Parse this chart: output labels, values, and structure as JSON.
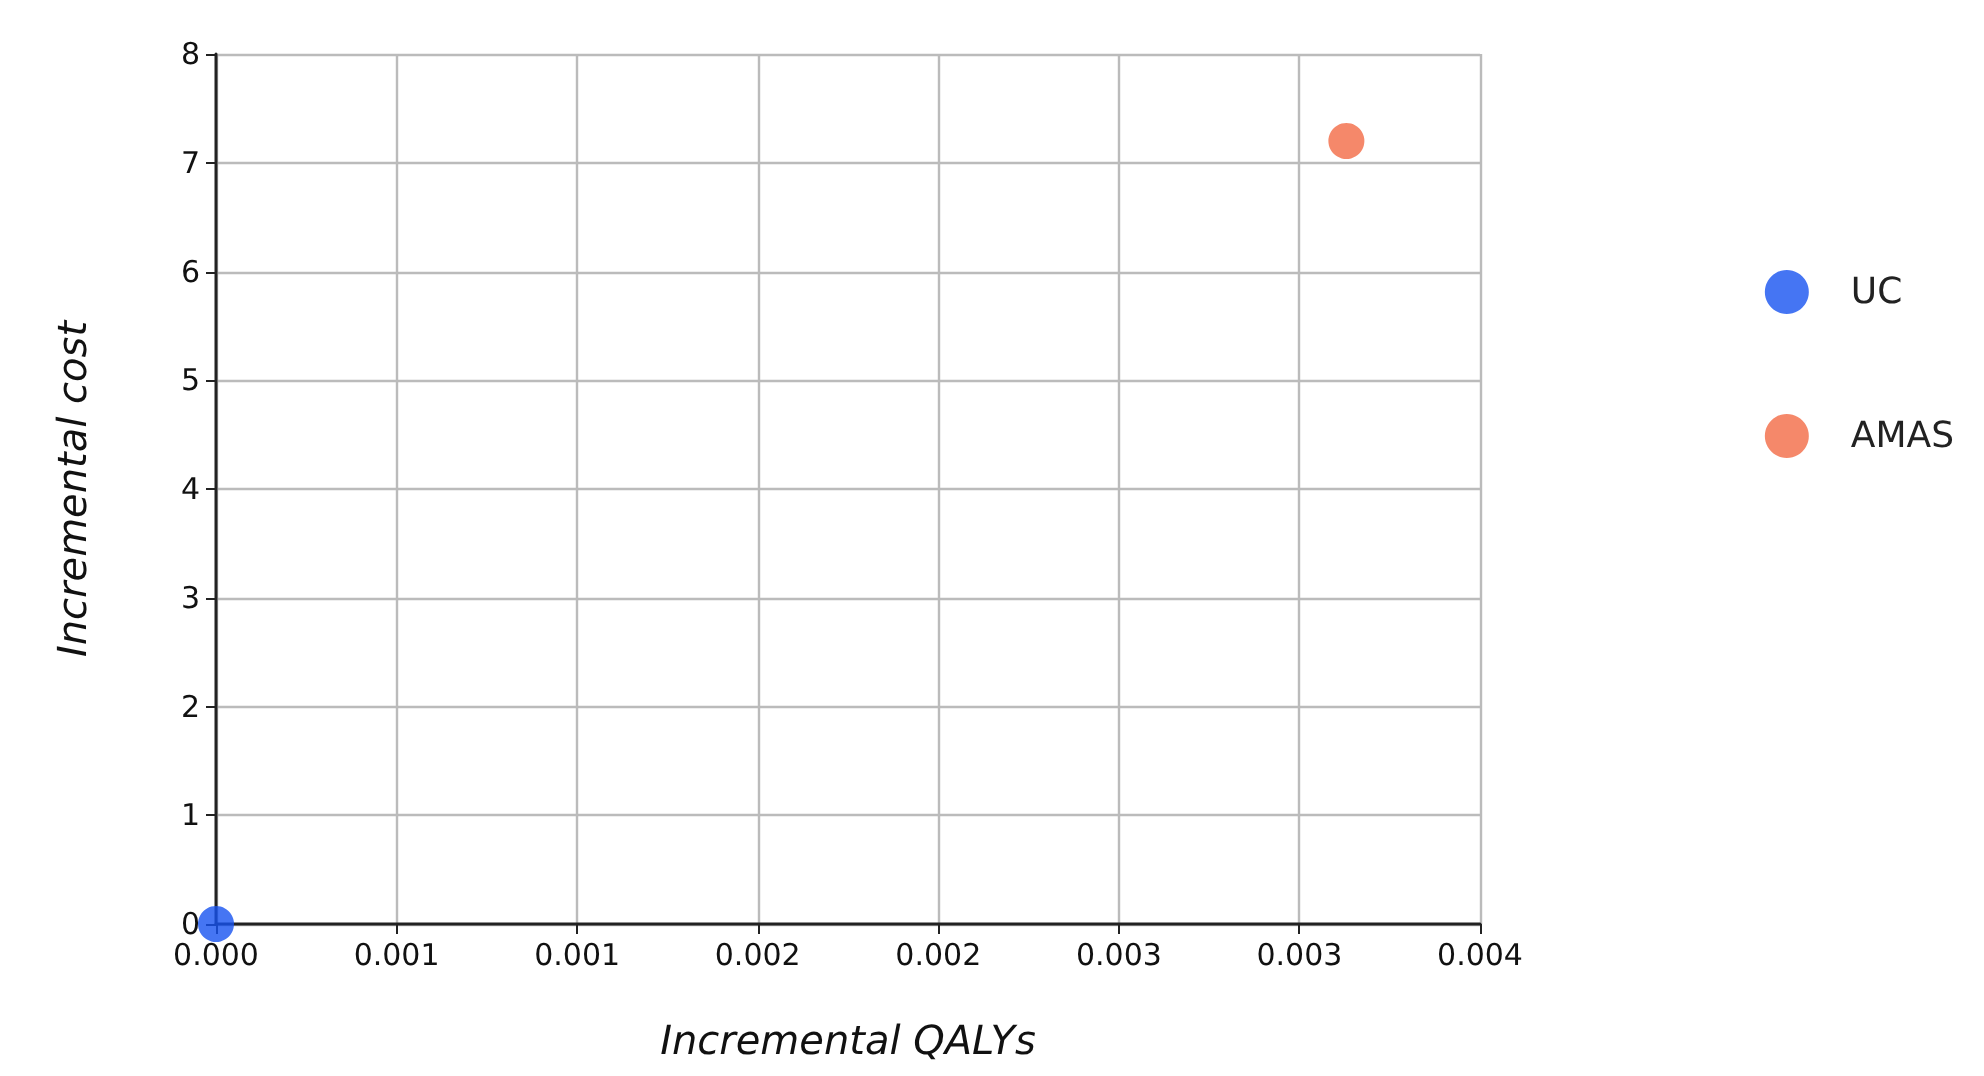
{
  "chart_data": {
    "type": "scatter",
    "xlabel": "Incremental QALYs",
    "ylabel": "Incremental cost",
    "series": [
      {
        "name": "UC",
        "color": "#1652f0",
        "x": [
          0
        ],
        "values": [
          0
        ]
      },
      {
        "name": "AMAS",
        "color": "#f26a45",
        "x": [
          0.00313
        ],
        "values": [
          7.2
        ]
      }
    ],
    "xlim": [
      0,
      0.0035
    ],
    "xticks": [
      {
        "value": 0,
        "label": "0.000"
      },
      {
        "value": 0.0005,
        "label": "0.001"
      },
      {
        "value": 0.001,
        "label": "0.001"
      },
      {
        "value": 0.0015,
        "label": "0.002"
      },
      {
        "value": 0.002,
        "label": "0.002"
      },
      {
        "value": 0.0025,
        "label": "0.003"
      },
      {
        "value": 0.003,
        "label": "0.003"
      },
      {
        "value": 0.0035,
        "label": "0.004"
      }
    ],
    "ylim": [
      0,
      8
    ],
    "yticks": [
      0,
      1,
      2,
      3,
      4,
      5,
      6,
      7,
      8
    ],
    "grid": true,
    "legend": "right",
    "marker": "circle"
  }
}
